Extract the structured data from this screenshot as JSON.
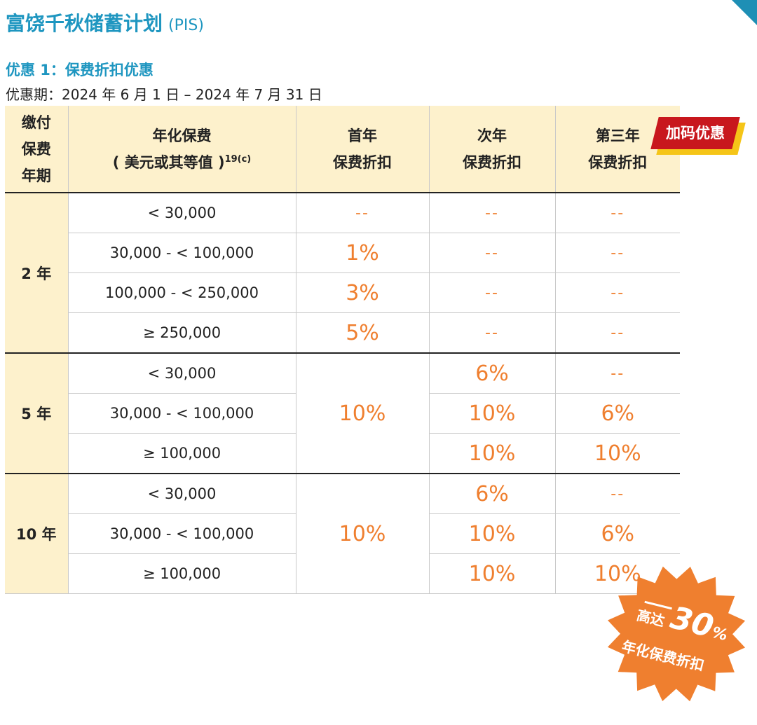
{
  "plan_title": "富饶千秋储蓄计划",
  "plan_code": "(PIS)",
  "offer_heading": "优惠 1：保费折扣优惠",
  "offer_period": "优惠期：2024 年 6 月 1 日 – 2024 年 7 月 31 日",
  "headers": {
    "term": "缴付保费年期",
    "term_lines": [
      "缴付",
      "保费",
      "年期"
    ],
    "premium_line1": "年化保费",
    "premium_line2": "( 美元或其等值 )",
    "premium_note": "19(c)",
    "year1_lines": [
      "首年",
      "保费折扣"
    ],
    "year2_lines": [
      "次年",
      "保费折扣"
    ],
    "year3_lines": [
      "第三年",
      "保费折扣"
    ]
  },
  "bonus_badge": "加码优惠",
  "groups": [
    {
      "term": "2 年",
      "rows": [
        {
          "premium": "< 30,000",
          "y1": "--",
          "y2": "--",
          "y3": "--"
        },
        {
          "premium": "30,000 - < 100,000",
          "y1": "1%",
          "y2": "--",
          "y3": "--"
        },
        {
          "premium": "100,000 - < 250,000",
          "y1": "3%",
          "y2": "--",
          "y3": "--"
        },
        {
          "premium": "≥ 250,000",
          "y1": "5%",
          "y2": "--",
          "y3": "--"
        }
      ]
    },
    {
      "term": "5 年",
      "y1": "10%",
      "rows": [
        {
          "premium": "< 30,000",
          "y2": "6%",
          "y3": "--"
        },
        {
          "premium": "30,000 - < 100,000",
          "y2": "10%",
          "y3": "6%"
        },
        {
          "premium": "≥ 100,000",
          "y2": "10%",
          "y3": "10%"
        }
      ]
    },
    {
      "term": "10 年",
      "y1": "10%",
      "rows": [
        {
          "premium": "< 30,000",
          "y2": "6%",
          "y3": "--"
        },
        {
          "premium": "30,000 - < 100,000",
          "y2": "10%",
          "y3": "6%"
        },
        {
          "premium": "≥ 100,000",
          "y2": "10%",
          "y3": "10%"
        }
      ]
    }
  ],
  "burst": {
    "up_to": "高达",
    "percent": "30",
    "percent_sign": "%",
    "caption": "年化保费折扣"
  },
  "colors": {
    "title_blue": "#1e96c0",
    "header_bg": "#fdf1cc",
    "value_orange": "#ef7f2f",
    "badge_red": "#c8171d",
    "badge_yellow": "#f5c518",
    "burst_orange": "#ef7f2f"
  }
}
